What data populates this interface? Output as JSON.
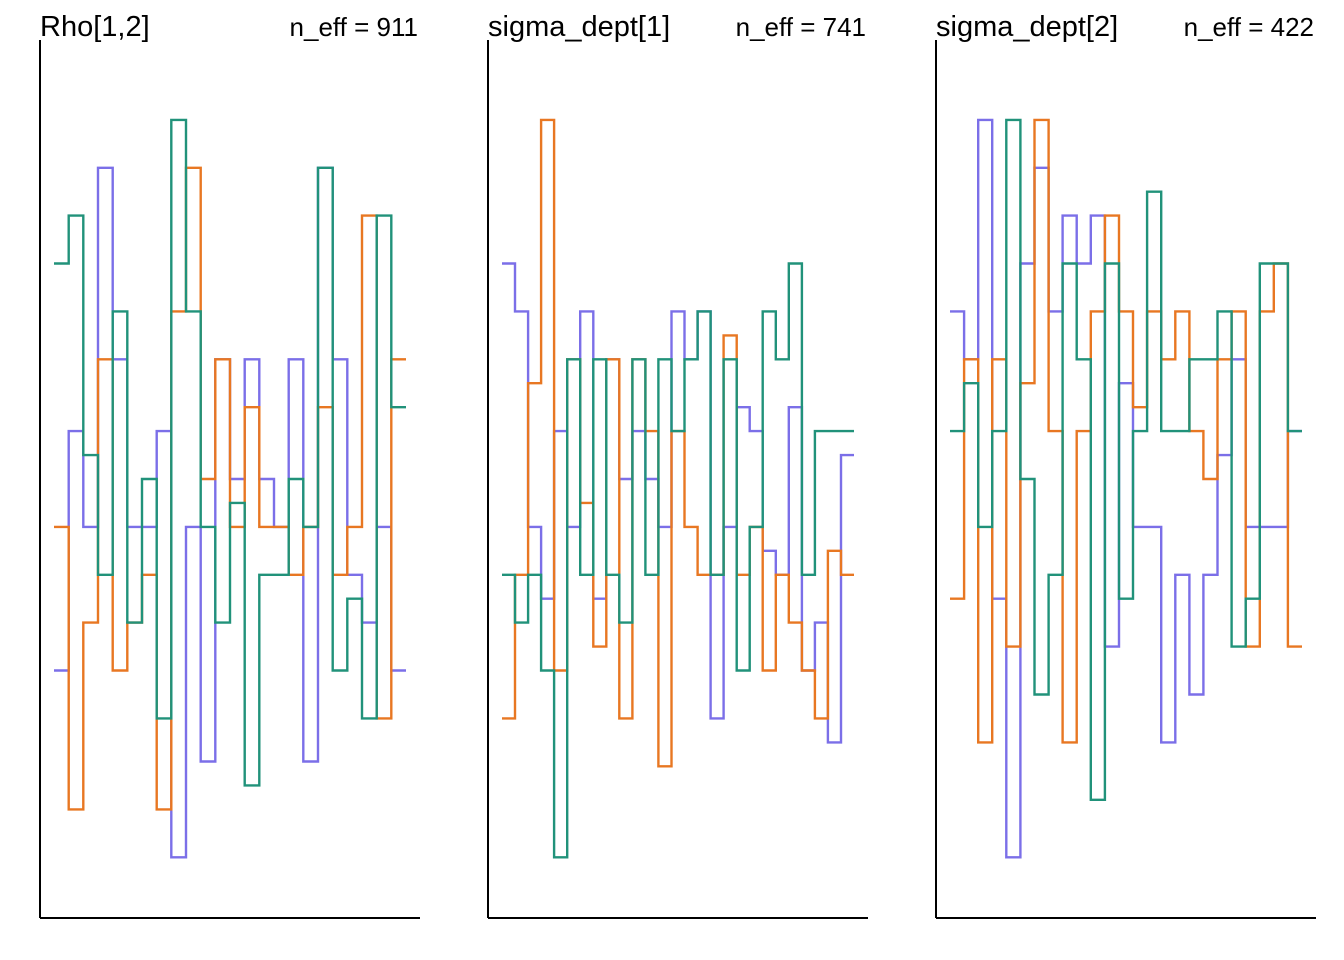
{
  "figure": {
    "title": "",
    "panels": [
      {
        "title": "Rho[1,2]",
        "annotation": "n_eff = 911"
      },
      {
        "title": "sigma_dept[1]",
        "annotation": "n_eff = 741"
      },
      {
        "title": "sigma_dept[2]",
        "annotation": "n_eff = 422"
      }
    ]
  },
  "chart_data": [
    {
      "type": "line",
      "step": true,
      "title": "Rho[1,2]",
      "annotation": "n_eff = 911",
      "xlabel": "",
      "ylabel": "",
      "ylim": [
        0,
        17
      ],
      "grid": false,
      "axes_ticks": false,
      "series": [
        {
          "color": "#7B6FE8",
          "values": [
            4.5,
            9.5,
            7.5,
            15,
            11,
            7.5,
            7.5,
            9.5,
            0.6,
            7.5,
            2.6,
            11,
            8.5,
            11,
            8.5,
            7.5,
            11,
            2.6,
            15,
            11,
            6.5,
            5.5,
            7.5,
            4.5
          ]
        },
        {
          "color": "#E87722",
          "values": [
            7.5,
            1.6,
            5.5,
            11,
            4.5,
            5.5,
            6.5,
            1.6,
            12,
            15,
            8.5,
            11,
            7.5,
            10,
            7.5,
            7.5,
            6.5,
            7.5,
            10,
            6.5,
            7.5,
            14,
            3.5,
            11
          ]
        },
        {
          "color": "#21927A",
          "values": [
            13,
            14,
            9,
            6.5,
            12,
            5.5,
            8.5,
            3.5,
            16,
            12,
            7.5,
            5.5,
            8,
            2.1,
            6.5,
            6.5,
            8.5,
            7.5,
            15,
            4.5,
            6,
            3.5,
            14,
            10
          ]
        }
      ]
    },
    {
      "type": "line",
      "step": true,
      "title": "sigma_dept[1]",
      "annotation": "n_eff = 741",
      "xlabel": "",
      "ylabel": "",
      "ylim": [
        0,
        17
      ],
      "grid": false,
      "axes_ticks": false,
      "series": [
        {
          "color": "#7B6FE8",
          "values": [
            13,
            12,
            7.5,
            6,
            9.5,
            7.5,
            12,
            6,
            11,
            8.5,
            9.5,
            8.5,
            7.5,
            12,
            11,
            12,
            3.5,
            7.5,
            10,
            9.5,
            7,
            6.5,
            10,
            4.5,
            5.5,
            3,
            9
          ]
        },
        {
          "color": "#E87722",
          "values": [
            3.5,
            6.5,
            10.5,
            16,
            4.5,
            11,
            8,
            5,
            11,
            3.5,
            11,
            9.5,
            2.5,
            9.5,
            7.5,
            6.5,
            6.5,
            11.5,
            6.5,
            7.5,
            4.5,
            6.5,
            5.5,
            4.5,
            3.5,
            7,
            6.5
          ]
        },
        {
          "color": "#21927A",
          "values": [
            6.5,
            5.5,
            6.5,
            4.5,
            0.6,
            11,
            6.5,
            11,
            6.5,
            5.5,
            11,
            6.5,
            11,
            9.5,
            11,
            12,
            6.5,
            11,
            4.5,
            7.5,
            12,
            11,
            13,
            6.5,
            9.5,
            9.5,
            9.5
          ]
        }
      ]
    },
    {
      "type": "line",
      "step": true,
      "title": "sigma_dept[2]",
      "annotation": "n_eff = 422",
      "xlabel": "",
      "ylabel": "",
      "ylim": [
        0,
        17
      ],
      "grid": false,
      "axes_ticks": false,
      "series": [
        {
          "color": "#7B6FE8",
          "values": [
            12,
            11,
            16,
            6,
            0.6,
            13,
            15,
            12,
            14,
            13,
            14,
            5,
            10.5,
            7.5,
            7.5,
            3,
            6.5,
            4,
            6.5,
            9,
            11,
            7.5,
            7.5,
            7.5,
            9.5
          ]
        },
        {
          "color": "#E87722",
          "values": [
            6,
            11,
            3,
            11,
            5,
            10.5,
            16,
            9.5,
            3,
            9.5,
            12,
            14,
            12,
            10,
            12,
            11,
            12,
            9.5,
            8.5,
            11,
            12,
            5,
            12,
            13,
            5
          ]
        },
        {
          "color": "#21927A",
          "values": [
            9.5,
            10.5,
            7.5,
            9.5,
            16,
            8.5,
            4,
            6.5,
            13,
            11,
            1.8,
            13,
            6,
            9.5,
            14.5,
            9.5,
            9.5,
            11,
            11,
            12,
            5,
            6,
            13,
            13,
            9.5
          ]
        }
      ]
    }
  ]
}
